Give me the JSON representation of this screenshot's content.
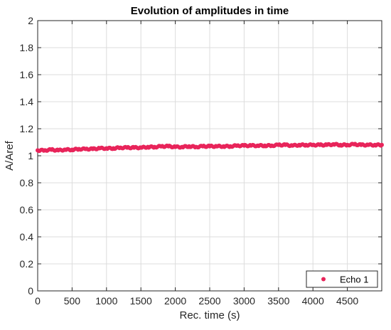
{
  "chart_data": {
    "type": "scatter",
    "title": "Evolution of amplitudes in time",
    "xlabel": "Rec. time (s)",
    "ylabel": "A/Aref",
    "xlim": [
      0,
      5000
    ],
    "ylim": [
      0,
      2
    ],
    "x_ticks": [
      0,
      500,
      1000,
      1500,
      2000,
      2500,
      3000,
      3500,
      4000,
      4500
    ],
    "y_ticks": [
      0,
      0.2,
      0.4,
      0.6,
      0.8,
      1,
      1.2,
      1.4,
      1.6,
      1.8,
      2
    ],
    "grid": true,
    "legend_position": "bottom-right",
    "series": [
      {
        "name": "Echo 1",
        "color": "#e8245a",
        "marker": "dot",
        "x": [
          0,
          100,
          200,
          300,
          400,
          500,
          600,
          700,
          800,
          900,
          1000,
          1100,
          1200,
          1300,
          1400,
          1500,
          1600,
          1700,
          1800,
          1900,
          2000,
          2100,
          2200,
          2300,
          2400,
          2500,
          2600,
          2700,
          2800,
          2900,
          3000,
          3100,
          3200,
          3300,
          3400,
          3500,
          3600,
          3700,
          3800,
          3900,
          4000,
          4100,
          4200,
          4300,
          4400,
          4500,
          4600,
          4700,
          4800,
          4900,
          5000
        ],
        "y": [
          1.04,
          1.04,
          1.045,
          1.04,
          1.045,
          1.045,
          1.05,
          1.05,
          1.05,
          1.055,
          1.055,
          1.055,
          1.06,
          1.06,
          1.06,
          1.06,
          1.065,
          1.065,
          1.07,
          1.07,
          1.065,
          1.065,
          1.07,
          1.065,
          1.07,
          1.07,
          1.07,
          1.07,
          1.07,
          1.075,
          1.075,
          1.075,
          1.075,
          1.075,
          1.075,
          1.08,
          1.08,
          1.075,
          1.08,
          1.08,
          1.08,
          1.08,
          1.08,
          1.085,
          1.08,
          1.08,
          1.085,
          1.08,
          1.08,
          1.08,
          1.08
        ]
      }
    ]
  }
}
